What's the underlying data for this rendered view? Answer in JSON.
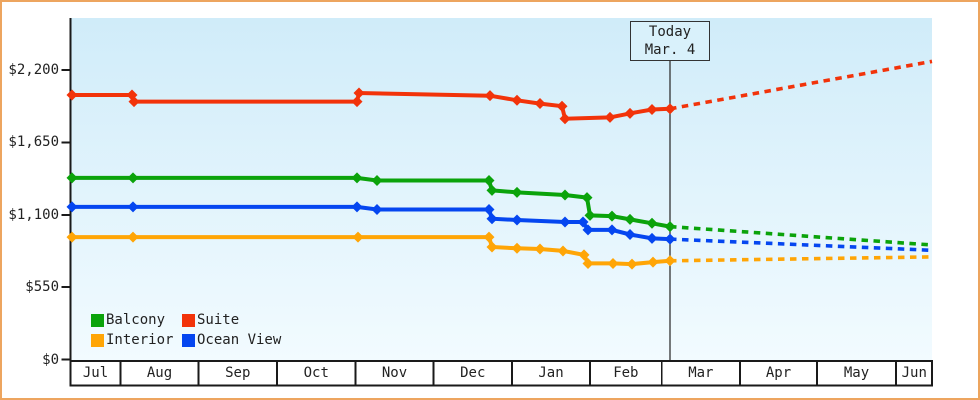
{
  "chart_data": {
    "type": "line",
    "title": "",
    "x_axis": {
      "months": [
        "Jul",
        "Aug",
        "Sep",
        "Oct",
        "Nov",
        "Dec",
        "Jan",
        "Feb",
        "Mar",
        "Apr",
        "May",
        "Jun"
      ]
    },
    "y_axis": {
      "ticks": [
        {
          "label": "$0",
          "value": 0
        },
        {
          "label": "$550",
          "value": 550
        },
        {
          "label": "$1,100",
          "value": 1100
        },
        {
          "label": "$1,650",
          "value": 1650
        },
        {
          "label": "$2,200",
          "value": 2200
        }
      ],
      "range": [
        0,
        2380
      ]
    },
    "today": {
      "line1": "Today",
      "line2": "Mar. 4"
    },
    "legend": [
      {
        "label": "Balcony",
        "color": "#0ba30b"
      },
      {
        "label": "Suite",
        "color": "#f2330a"
      },
      {
        "label": "Interior",
        "color": "#ffa506"
      },
      {
        "label": "Ocean View",
        "color": "#0546f0"
      }
    ],
    "x_unit": "pixel-position (exact dates unlabeled)",
    "value_unit": "USD",
    "series": [
      {
        "name": "Suite",
        "color": "#f2330a",
        "solid": [
          [
            72,
            2010
          ],
          [
            132,
            2010
          ],
          [
            134,
            1960
          ],
          [
            357,
            1960
          ],
          [
            359,
            2025
          ],
          [
            490,
            2005
          ],
          [
            517,
            1970
          ],
          [
            540,
            1945
          ],
          [
            562,
            1925
          ],
          [
            565,
            1830
          ],
          [
            610,
            1840
          ],
          [
            630,
            1870
          ],
          [
            652,
            1900
          ],
          [
            670,
            1905
          ]
        ],
        "projection": [
          [
            670,
            1905
          ],
          [
            932,
            2265
          ]
        ]
      },
      {
        "name": "Balcony",
        "color": "#0ba30b",
        "solid": [
          [
            72,
            1380
          ],
          [
            133,
            1380
          ],
          [
            357,
            1380
          ],
          [
            377,
            1360
          ],
          [
            489,
            1360
          ],
          [
            492,
            1285
          ],
          [
            517,
            1270
          ],
          [
            565,
            1250
          ],
          [
            587,
            1230
          ],
          [
            590,
            1095
          ],
          [
            612,
            1090
          ],
          [
            630,
            1065
          ],
          [
            652,
            1035
          ],
          [
            670,
            1010
          ]
        ],
        "projection": [
          [
            670,
            1010
          ],
          [
            932,
            870
          ]
        ]
      },
      {
        "name": "Ocean View",
        "color": "#0546f0",
        "solid": [
          [
            72,
            1160
          ],
          [
            133,
            1160
          ],
          [
            357,
            1160
          ],
          [
            377,
            1140
          ],
          [
            489,
            1140
          ],
          [
            492,
            1070
          ],
          [
            517,
            1060
          ],
          [
            565,
            1045
          ],
          [
            583,
            1045
          ],
          [
            588,
            985
          ],
          [
            612,
            985
          ],
          [
            630,
            950
          ],
          [
            652,
            920
          ],
          [
            670,
            915
          ]
        ],
        "projection": [
          [
            670,
            915
          ],
          [
            932,
            830
          ]
        ]
      },
      {
        "name": "Interior",
        "color": "#ffa506",
        "solid": [
          [
            72,
            930
          ],
          [
            133,
            930
          ],
          [
            358,
            930
          ],
          [
            489,
            930
          ],
          [
            492,
            855
          ],
          [
            517,
            845
          ],
          [
            540,
            840
          ],
          [
            563,
            825
          ],
          [
            584,
            795
          ],
          [
            588,
            730
          ],
          [
            613,
            730
          ],
          [
            632,
            725
          ],
          [
            653,
            740
          ],
          [
            670,
            750
          ]
        ],
        "projection": [
          [
            670,
            750
          ],
          [
            932,
            780
          ]
        ]
      }
    ]
  }
}
